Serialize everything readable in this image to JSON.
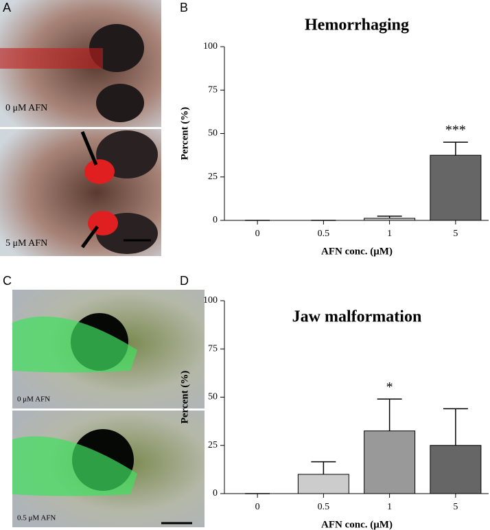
{
  "panel_labels": [
    "A",
    "B",
    "C",
    "D"
  ],
  "image_labels": {
    "A_top": "0 μM AFN",
    "A_bottom": "5 μM AFN",
    "C_top": "0 μM AFN",
    "C_bottom": "0.5 μM AFN"
  },
  "chart_data": [
    {
      "type": "bar",
      "title": "Hemorrhaging",
      "x_label": "AFN conc. (μM)",
      "y_label": "Percent (%)",
      "categories": [
        "0",
        "0.5",
        "1",
        "5"
      ],
      "values": [
        0,
        0,
        1.2,
        37.5
      ],
      "errors": [
        0,
        0,
        1.2,
        7.5
      ],
      "colors": [
        "#cccccc",
        "#cccccc",
        "#cccccc",
        "#666666"
      ],
      "significance": [
        null,
        null,
        null,
        "***"
      ],
      "ylim": [
        0,
        100
      ],
      "yticks": [
        0,
        25,
        50,
        75,
        100
      ]
    },
    {
      "type": "bar",
      "title": "Jaw malformation",
      "x_label": "AFN conc. (μM)",
      "y_label": "Percent (%)",
      "categories": [
        "0",
        "0.5",
        "1",
        "5"
      ],
      "values": [
        0,
        10,
        32.5,
        25
      ],
      "errors": [
        0,
        6.5,
        16.5,
        19
      ],
      "colors": [
        "#cccccc",
        "#cccccc",
        "#999999",
        "#666666"
      ],
      "significance": [
        null,
        null,
        "*",
        null
      ],
      "ylim": [
        0,
        100
      ],
      "yticks": [
        0,
        25,
        50,
        75,
        100
      ]
    }
  ]
}
